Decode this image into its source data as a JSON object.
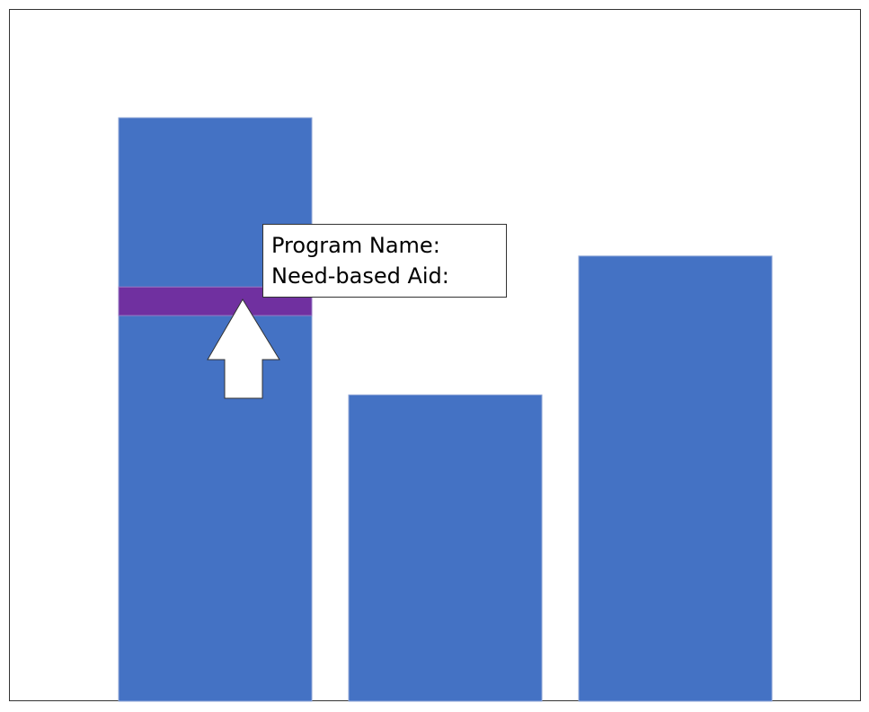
{
  "chart_data": {
    "type": "bar",
    "categories": [
      "",
      "",
      ""
    ],
    "values": [
      100,
      52.5,
      76.3
    ],
    "ylim": [
      0,
      120
    ],
    "colors": {
      "bar": "#4472C4",
      "highlight": "#7030A0",
      "frame": "#333333"
    },
    "highlight_band": {
      "bar_index": 0,
      "from": 66.1,
      "to": 71
    },
    "grid": false,
    "legend": "none"
  },
  "tooltip": {
    "program_label": "Program Name:",
    "aid_label": "Need-based Aid:"
  },
  "cursor": {
    "icon": "up-arrow-icon"
  }
}
